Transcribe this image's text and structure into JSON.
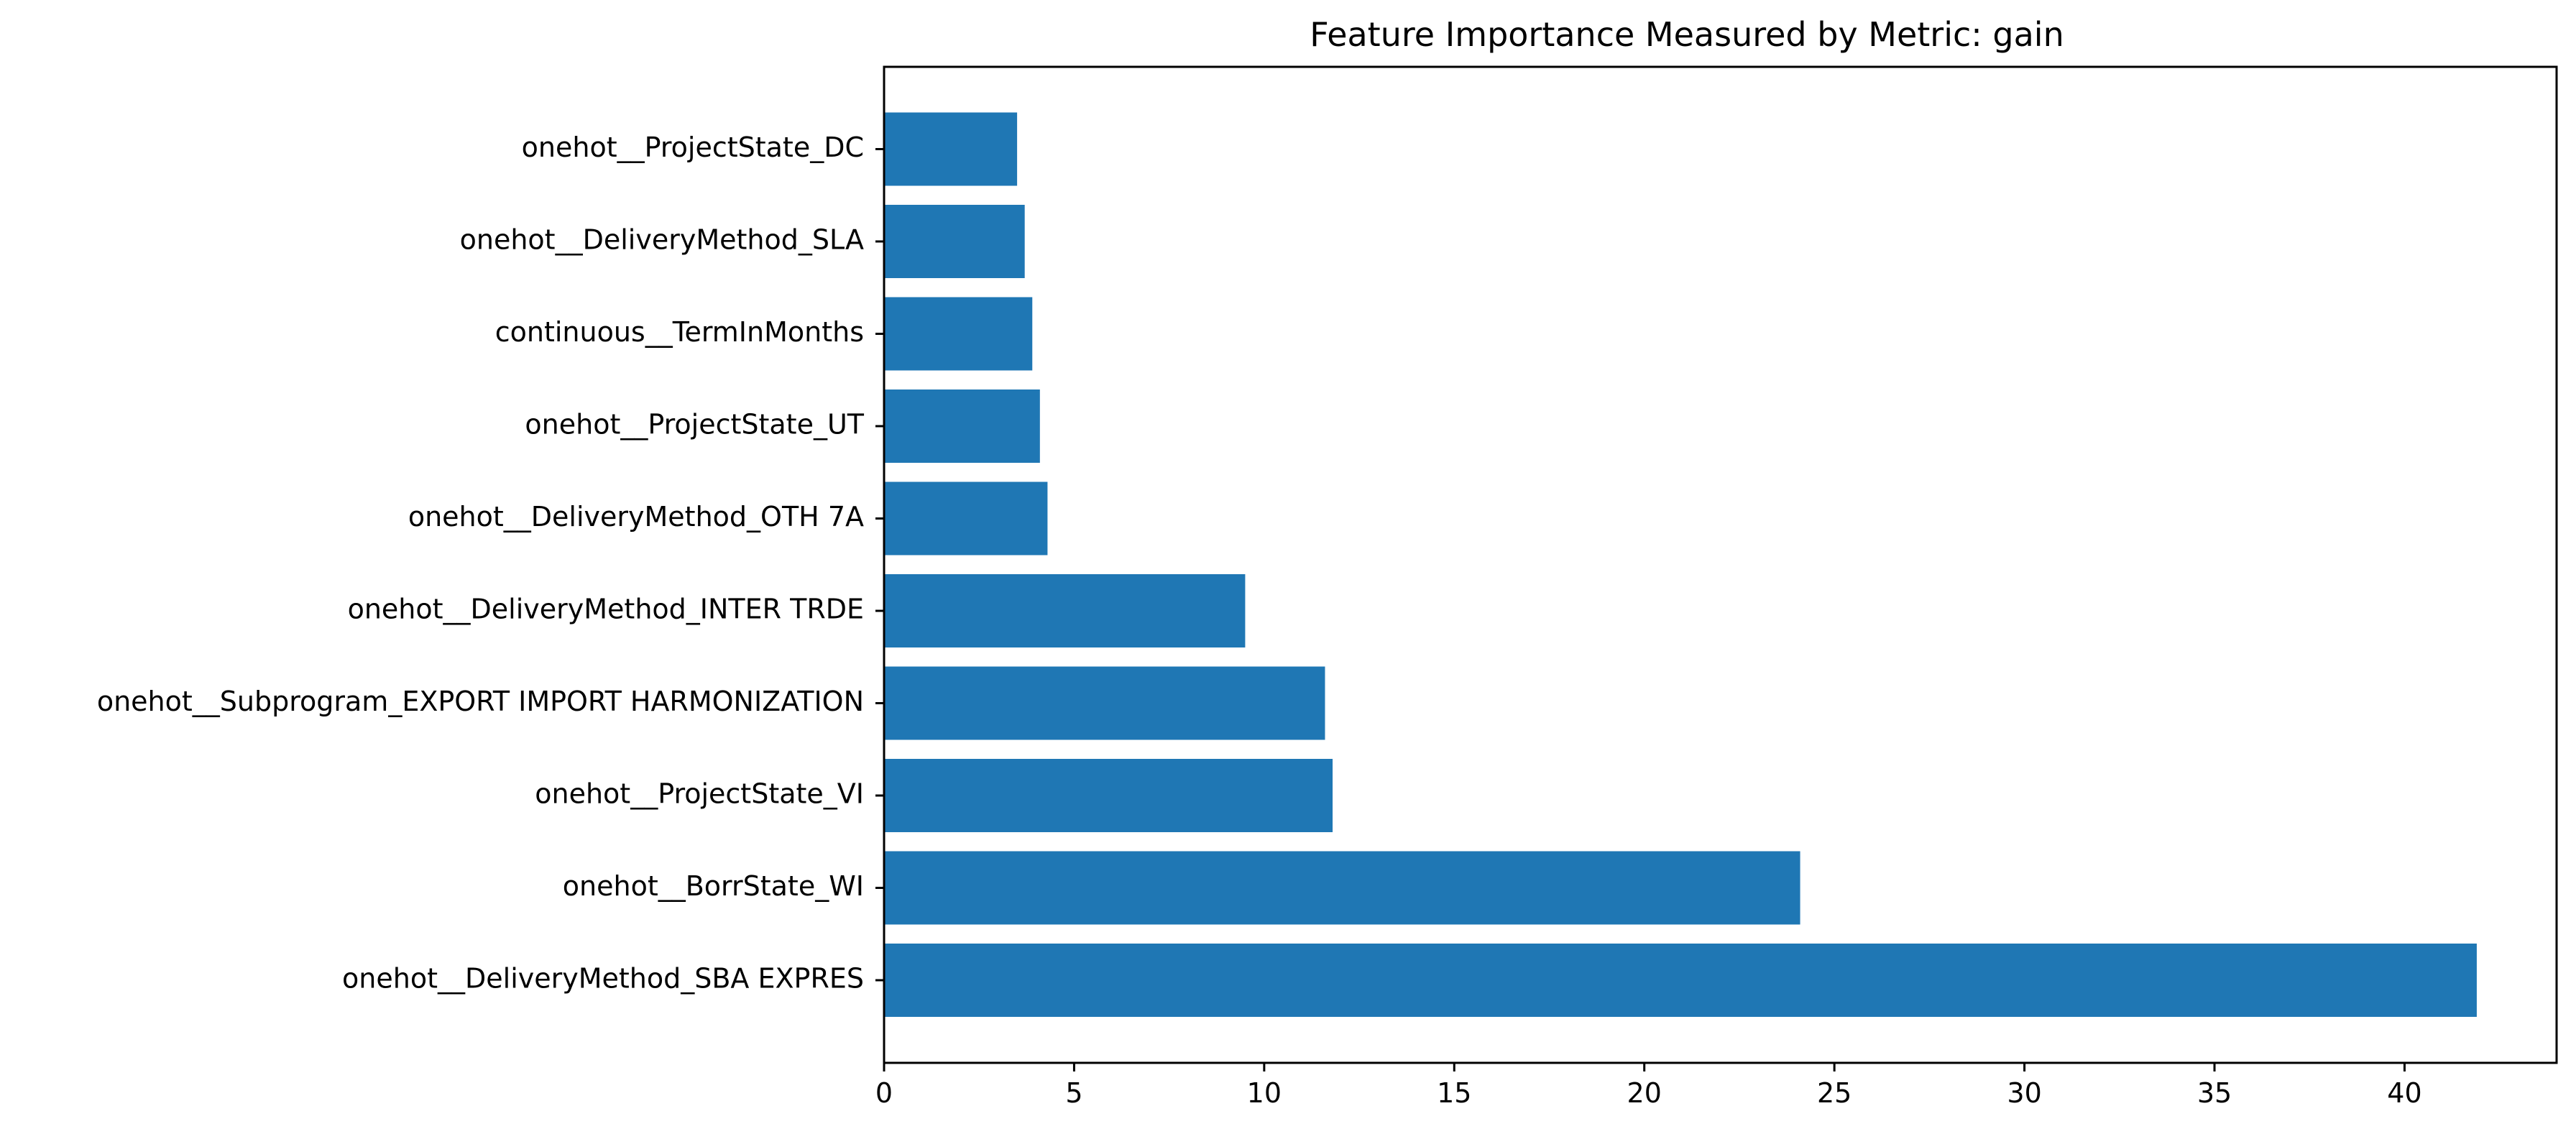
{
  "chart_data": {
    "type": "bar",
    "orientation": "horizontal",
    "title": "Feature Importance Measured by Metric: gain",
    "xlabel": "",
    "ylabel": "",
    "categories": [
      "onehot__DeliveryMethod_SBA EXPRES",
      "onehot__BorrState_WI",
      "onehot__ProjectState_VI",
      "onehot__Subprogram_EXPORT IMPORT HARMONIZATION",
      "onehot__DeliveryMethod_INTER TRDE",
      "onehot__DeliveryMethod_OTH 7A",
      "onehot__ProjectState_UT",
      "continuous__TermInMonths",
      "onehot__DeliveryMethod_SLA",
      "onehot__ProjectState_DC"
    ],
    "values": [
      41.9,
      24.1,
      11.8,
      11.6,
      9.5,
      4.3,
      4.1,
      3.9,
      3.7,
      3.5
    ],
    "xlim": [
      0,
      44
    ],
    "xticks": [
      0,
      5,
      10,
      15,
      20,
      25,
      30,
      35,
      40
    ],
    "bar_color": "#1f77b4",
    "grid": false,
    "legend": "none"
  }
}
